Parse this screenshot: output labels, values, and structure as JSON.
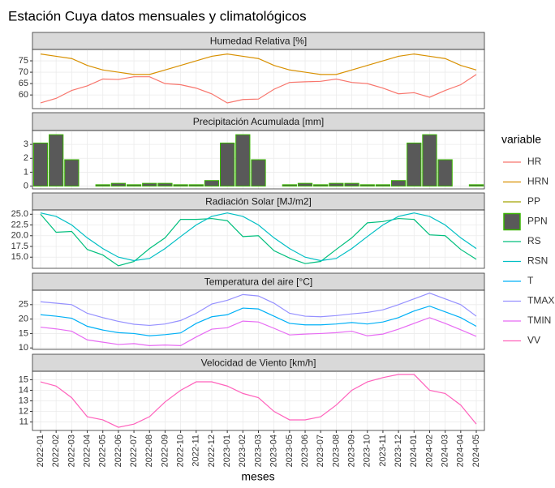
{
  "chart_data": {
    "type": "line",
    "title": "Estación Cuya datos mensuales y climatológicos",
    "x_label": "meses",
    "categories": [
      "2022-01",
      "2022-02",
      "2022-03",
      "2022-04",
      "2022-05",
      "2022-06",
      "2022-07",
      "2022-08",
      "2022-09",
      "2022-10",
      "2022-11",
      "2022-12",
      "2023-01",
      "2023-02",
      "2023-03",
      "2023-04",
      "2023-05",
      "2023-06",
      "2023-07",
      "2023-08",
      "2023-09",
      "2023-10",
      "2023-11",
      "2023-12",
      "2024-01",
      "2024-02",
      "2024-03",
      "2024-04",
      "2024-05"
    ],
    "grid": true,
    "legend": {
      "title": "variable",
      "position": "right",
      "items": [
        {
          "name": "HR",
          "color": "#F8766D"
        },
        {
          "name": "HRN",
          "color": "#D89000"
        },
        {
          "name": "PP",
          "color": "#A3A500"
        },
        {
          "name": "PPN",
          "color": "#39B600",
          "fill": "#595959"
        },
        {
          "name": "RS",
          "color": "#00BF7D"
        },
        {
          "name": "RSN",
          "color": "#00BFC4"
        },
        {
          "name": "T",
          "color": "#00B0F6"
        },
        {
          "name": "TMAX",
          "color": "#9590FF"
        },
        {
          "name": "TMIN",
          "color": "#E76BF3"
        },
        {
          "name": "VV",
          "color": "#FF62BC"
        }
      ]
    },
    "panels": [
      {
        "title": "Humedad Relativa [%]",
        "ylim": [
          54,
          80
        ],
        "yticks": [
          60,
          65,
          70,
          75
        ],
        "series": [
          {
            "name": "HR",
            "type": "line",
            "color": "#F8766D",
            "values": [
              56.5,
              58.5,
              62,
              64,
              67,
              66.8,
              68,
              68,
              65,
              64.5,
              63,
              60.5,
              56.5,
              58,
              58.2,
              62.5,
              65.5,
              65.8,
              66,
              67,
              65.5,
              65,
              63,
              60.5,
              61,
              59,
              62,
              64.5,
              69
            ]
          },
          {
            "name": "HRN",
            "type": "line",
            "color": "#D89000",
            "values": [
              78,
              77,
              76,
              73,
              71,
              70,
              69,
              69,
              71,
              73,
              75,
              77,
              78,
              77,
              76,
              73,
              71,
              70,
              69,
              69,
              71,
              73,
              75,
              77,
              78,
              77,
              76,
              73,
              71
            ]
          }
        ]
      },
      {
        "title": "Precipitación Acumulada [mm]",
        "ylim": [
          -0.2,
          4
        ],
        "yticks": [
          0,
          1,
          2,
          3
        ],
        "series": [
          {
            "name": "PPN",
            "type": "bar",
            "color": "#39B600",
            "fill": "#595959",
            "values": [
              3.1,
              3.7,
              1.9,
              0,
              0.1,
              0.2,
              0.1,
              0.2,
              0.2,
              0.1,
              0.1,
              0.4,
              3.1,
              3.7,
              1.9,
              0,
              0.1,
              0.2,
              0.1,
              0.2,
              0.2,
              0.1,
              0.1,
              0.4,
              3.1,
              3.7,
              1.9,
              0,
              0.1
            ]
          }
        ]
      },
      {
        "title": "Radiación Solar [MJ/m2]",
        "ylim": [
          12.4,
          26
        ],
        "yticks": [
          {
            "value": 15,
            "label": "15.0"
          },
          17.5,
          {
            "value": 20,
            "label": "20.0"
          },
          22.5,
          {
            "value": 25,
            "label": "25.0"
          }
        ],
        "series": [
          {
            "name": "RS",
            "type": "line",
            "color": "#00BF7D",
            "values": [
              25,
              20.8,
              21,
              16.8,
              15.5,
              13,
              14,
              17,
              19.5,
              23.8,
              23.8,
              24,
              23.5,
              19.8,
              20,
              16.5,
              14.8,
              13.5,
              14,
              16.8,
              19.5,
              23,
              23.3,
              24,
              23.8,
              20.2,
              20,
              16.8,
              14.5
            ]
          },
          {
            "name": "RSN",
            "type": "line",
            "color": "#00BFC4",
            "values": [
              25.3,
              24.5,
              22.5,
              19.5,
              17,
              15,
              14.2,
              14.7,
              17,
              19.8,
              22.5,
              24.5,
              25.3,
              24.5,
              22.5,
              19.5,
              17,
              15,
              14.2,
              14.7,
              17,
              19.8,
              22.5,
              24.5,
              25.3,
              24.5,
              22.5,
              19.5,
              17
            ]
          }
        ]
      },
      {
        "title": "Temperatura del aire [°C]",
        "ylim": [
          9.5,
          30
        ],
        "yticks": [
          10,
          15,
          20,
          25
        ],
        "series": [
          {
            "name": "T",
            "type": "line",
            "color": "#00B0F6",
            "values": [
              21.5,
              21,
              20.3,
              17.5,
              16.2,
              15.3,
              15,
              14.2,
              14.6,
              15.2,
              18.5,
              20.8,
              21.5,
              23.8,
              23.5,
              21,
              18.5,
              18,
              18,
              18.3,
              18.8,
              18.3,
              19,
              20.5,
              22.8,
              24.5,
              22.5,
              20.5,
              17.5
            ]
          },
          {
            "name": "TMAX",
            "type": "line",
            "color": "#9590FF",
            "values": [
              26,
              25.5,
              25,
              22,
              20.5,
              19.2,
              18.2,
              17.8,
              18.3,
              19.5,
              22,
              25.2,
              26.5,
              28.5,
              28,
              25.5,
              22,
              21,
              20.8,
              21.2,
              21.8,
              22.3,
              23.2,
              25,
              27,
              29,
              27,
              25,
              21
            ]
          },
          {
            "name": "TMIN",
            "type": "line",
            "color": "#E76BF3",
            "values": [
              17.2,
              16.6,
              15.8,
              12.8,
              12,
              11.2,
              11.5,
              10.8,
              11,
              10.8,
              13.8,
              16.5,
              17,
              19.3,
              19,
              16.8,
              14.5,
              14.8,
              15,
              15.3,
              15.8,
              14.2,
              14.8,
              16.5,
              18.5,
              20.5,
              18.5,
              16.3,
              14
            ]
          }
        ]
      },
      {
        "title": "Velocidad de Viento [km/h]",
        "ylim": [
          10.2,
          15.8
        ],
        "yticks": [
          11,
          12,
          13,
          14,
          15
        ],
        "series": [
          {
            "name": "VV",
            "type": "line",
            "color": "#FF62BC",
            "values": [
              14.8,
              14.4,
              13.3,
              11.5,
              11.2,
              10.5,
              10.8,
              11.5,
              12.9,
              14,
              14.8,
              14.8,
              14.4,
              13.7,
              13.3,
              12,
              11.2,
              11.2,
              11.5,
              12.6,
              14,
              14.8,
              15.2,
              15.5,
              15.5,
              14,
              13.7,
              12.6,
              10.8
            ]
          }
        ]
      }
    ]
  }
}
